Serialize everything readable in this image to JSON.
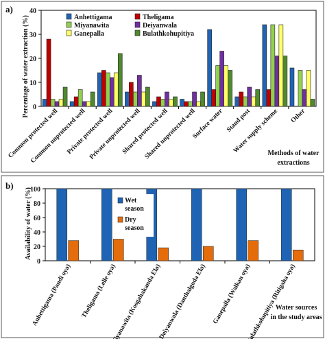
{
  "chart_data": [
    {
      "panel_label": "a)",
      "type": "bar",
      "ylabel": "Percentage of water extraction (%)",
      "xlabel_lines": [
        "Methods of water",
        "extractions"
      ],
      "ylim": [
        0,
        40
      ],
      "yticks": [
        0,
        10,
        20,
        30,
        40
      ],
      "categories": [
        "Common protected well",
        "Common unprotected well",
        "Private protected well",
        "Private unprotected well",
        "Shared protected well",
        "Shared unprotected well",
        "Surface water",
        "Stand post",
        "Water supply scheme",
        "Other"
      ],
      "series": [
        {
          "name": "Anhettigama",
          "color": "#1f64b4",
          "values": [
            3,
            2,
            14,
            6,
            2,
            3,
            32,
            4,
            34,
            16
          ]
        },
        {
          "name": "Theligama",
          "color": "#c00000",
          "values": [
            28,
            4,
            15,
            10,
            4,
            2,
            7,
            6,
            7,
            0
          ]
        },
        {
          "name": "Miyanawita",
          "color": "#92d050",
          "values": [
            3,
            7,
            14,
            6,
            3,
            2,
            17,
            4,
            34,
            15
          ]
        },
        {
          "name": "Deiyanwala",
          "color": "#7030a0",
          "values": [
            2,
            2,
            12,
            13,
            6,
            6,
            23,
            8,
            21,
            7
          ]
        },
        {
          "name": "Ganepalla",
          "color": "#ffff66",
          "values": [
            3,
            2,
            14,
            6,
            3,
            2,
            17,
            4,
            34,
            15
          ]
        },
        {
          "name": "Bulathkohupitiya",
          "color": "#4f8a2e",
          "values": [
            8,
            6,
            22,
            8,
            4,
            6,
            15,
            7,
            21,
            3
          ]
        }
      ]
    },
    {
      "panel_label": "b)",
      "type": "bar",
      "ylabel": "Availability of water (%)",
      "xlabel_lines": [
        "Water sources",
        "in the study areas"
      ],
      "ylim": [
        0,
        100
      ],
      "yticks": [
        0,
        20,
        40,
        60,
        80,
        100
      ],
      "categories": [
        "Anhettigama (Pandi oya)",
        "Theligama (Lelle oya)",
        "Miyanawita (Kosgahakanda Ela)",
        "Deiyanwala (Danthalgoda Ela)",
        "Ganepalla (Walkan oya)",
        "Bulathkohupitiya (Ritigaha oya)"
      ],
      "series": [
        {
          "name": "Wet season",
          "legend_lines": [
            "Wet",
            "season"
          ],
          "color": "#1f64b4",
          "values": [
            100,
            100,
            100,
            100,
            100,
            100
          ]
        },
        {
          "name": "Dry season",
          "legend_lines": [
            "Dry",
            "season"
          ],
          "color": "#e46c0a",
          "values": [
            28,
            30,
            18,
            20,
            28,
            15
          ]
        }
      ]
    }
  ]
}
